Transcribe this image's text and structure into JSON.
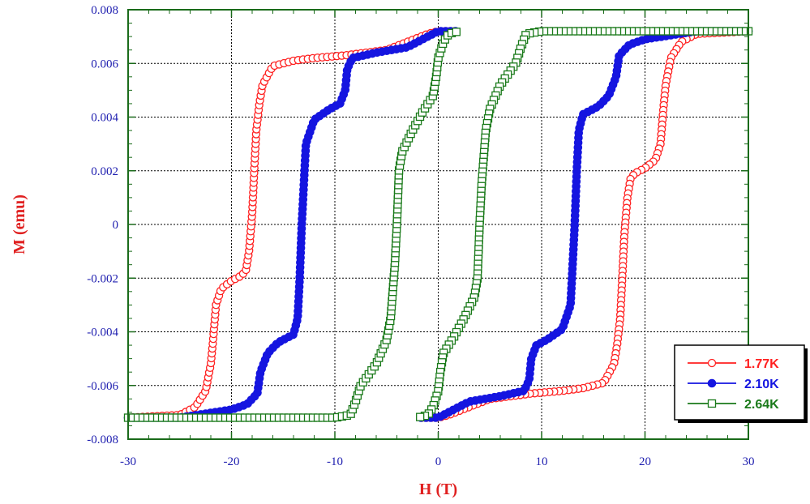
{
  "chart_data": {
    "type": "scatter",
    "xlabel": "H (T)",
    "ylabel": "M (emu)",
    "xlim": [
      -30,
      30
    ],
    "ylim": [
      -0.008,
      0.008
    ],
    "xticks": [
      "-30",
      "-20",
      "-10",
      "0",
      "10",
      "20",
      "30"
    ],
    "xtick_values": [
      -30,
      -20,
      -10,
      0,
      10,
      20,
      30
    ],
    "yticks": [
      "0.008",
      "0.006",
      "0.004",
      "0.002",
      "0",
      "-0.002",
      "-0.004",
      "-0.006",
      "-0.008"
    ],
    "ytick_values": [
      0.008,
      0.006,
      0.004,
      0.002,
      0,
      -0.002,
      -0.004,
      -0.006,
      -0.008
    ],
    "grid": true,
    "legend_position": "bottom-right",
    "colors": {
      "axis": "#1a6b1a",
      "ticklabels": "#2020b0",
      "titles": "#e02020",
      "grid": "#000000"
    },
    "series": [
      {
        "name": "1.77K",
        "color": "#ff2020",
        "marker": "open-circle",
        "up": [
          [
            -30,
            -0.0072
          ],
          [
            -25,
            -0.0071
          ],
          [
            -23.5,
            -0.0068
          ],
          [
            -22.5,
            -0.0062
          ],
          [
            -22,
            -0.0052
          ],
          [
            -21.8,
            -0.0044
          ],
          [
            -21.5,
            -0.003
          ],
          [
            -21,
            -0.0024
          ],
          [
            -20,
            -0.0021
          ],
          [
            -19,
            -0.0019
          ],
          [
            -18.6,
            -0.0017
          ],
          [
            -18.3,
            -0.001
          ],
          [
            -18,
            0.0004
          ],
          [
            -17.8,
            0.002
          ],
          [
            -17.6,
            0.0035
          ],
          [
            -17.3,
            0.0045
          ],
          [
            -17,
            0.0052
          ],
          [
            -16,
            0.0059
          ],
          [
            -14,
            0.0061
          ],
          [
            -12,
            0.0062
          ],
          [
            -9,
            0.0063
          ],
          [
            -5,
            0.0065
          ],
          [
            -3,
            0.0068
          ],
          [
            -1,
            0.0071
          ],
          [
            0,
            0.0072
          ],
          [
            2,
            0.0072
          ]
        ],
        "down": [
          [
            30,
            0.0072
          ],
          [
            25,
            0.0071
          ],
          [
            23.5,
            0.0068
          ],
          [
            22.5,
            0.0062
          ],
          [
            22,
            0.0052
          ],
          [
            21.8,
            0.0044
          ],
          [
            21.5,
            0.003
          ],
          [
            21,
            0.0024
          ],
          [
            20,
            0.0021
          ],
          [
            19,
            0.0019
          ],
          [
            18.6,
            0.0017
          ],
          [
            18.3,
            0.001
          ],
          [
            18,
            -0.0004
          ],
          [
            17.8,
            -0.002
          ],
          [
            17.6,
            -0.0035
          ],
          [
            17.3,
            -0.0045
          ],
          [
            17,
            -0.0052
          ],
          [
            16,
            -0.0059
          ],
          [
            14,
            -0.0061
          ],
          [
            12,
            -0.0062
          ],
          [
            9,
            -0.0063
          ],
          [
            5,
            -0.0065
          ],
          [
            3,
            -0.0068
          ],
          [
            1,
            -0.0071
          ],
          [
            0,
            -0.0072
          ],
          [
            -2,
            -0.0072
          ]
        ]
      },
      {
        "name": "2.10K",
        "color": "#1515e0",
        "marker": "filled-circle",
        "up": [
          [
            -30,
            -0.0072
          ],
          [
            -25,
            -0.0072
          ],
          [
            -20,
            -0.0069
          ],
          [
            -18.5,
            -0.0067
          ],
          [
            -17.5,
            -0.0063
          ],
          [
            -17.2,
            -0.0055
          ],
          [
            -16.5,
            -0.0048
          ],
          [
            -15.5,
            -0.0044
          ],
          [
            -14,
            -0.0041
          ],
          [
            -13.6,
            -0.0035
          ],
          [
            -13.4,
            -0.002
          ],
          [
            -13.2,
            0.0
          ],
          [
            -13,
            0.0015
          ],
          [
            -12.8,
            0.003
          ],
          [
            -12,
            0.0039
          ],
          [
            -10.5,
            0.0043
          ],
          [
            -9.5,
            0.0045
          ],
          [
            -9,
            0.005
          ],
          [
            -8.8,
            0.0058
          ],
          [
            -8.3,
            0.0062
          ],
          [
            -6,
            0.0064
          ],
          [
            -3,
            0.0066
          ],
          [
            -1,
            0.007
          ],
          [
            0,
            0.0072
          ],
          [
            2,
            0.0072
          ]
        ],
        "down": [
          [
            30,
            0.0072
          ],
          [
            25,
            0.0072
          ],
          [
            20,
            0.0069
          ],
          [
            18.5,
            0.0067
          ],
          [
            17.5,
            0.0063
          ],
          [
            17.2,
            0.0055
          ],
          [
            16.5,
            0.0048
          ],
          [
            15.5,
            0.0044
          ],
          [
            14,
            0.0041
          ],
          [
            13.6,
            0.0035
          ],
          [
            13.4,
            0.002
          ],
          [
            13.2,
            0.0
          ],
          [
            13,
            -0.0015
          ],
          [
            12.8,
            -0.003
          ],
          [
            12,
            -0.0039
          ],
          [
            10.5,
            -0.0043
          ],
          [
            9.5,
            -0.0045
          ],
          [
            9,
            -0.005
          ],
          [
            8.8,
            -0.0058
          ],
          [
            8.3,
            -0.0062
          ],
          [
            6,
            -0.0064
          ],
          [
            3,
            -0.0066
          ],
          [
            1,
            -0.007
          ],
          [
            0,
            -0.0072
          ],
          [
            -2,
            -0.0072
          ]
        ]
      },
      {
        "name": "2.64K",
        "color": "#1a7a1a",
        "marker": "open-square",
        "up": [
          [
            -30,
            -0.0072
          ],
          [
            -20,
            -0.0072
          ],
          [
            -10,
            -0.0072
          ],
          [
            -8.5,
            -0.0071
          ],
          [
            -8,
            -0.0066
          ],
          [
            -7.5,
            -0.006
          ],
          [
            -6,
            -0.0052
          ],
          [
            -5,
            -0.0043
          ],
          [
            -4.6,
            -0.0035
          ],
          [
            -4.4,
            -0.0025
          ],
          [
            -4.2,
            -0.0015
          ],
          [
            -4,
            0.0
          ],
          [
            -3.8,
            0.002
          ],
          [
            -3.5,
            0.0027
          ],
          [
            -2.5,
            0.0035
          ],
          [
            -1.5,
            0.0042
          ],
          [
            -0.5,
            0.0048
          ],
          [
            -0.2,
            0.0055
          ],
          [
            0,
            0.0062
          ],
          [
            0.5,
            0.0068
          ],
          [
            1,
            0.0071
          ],
          [
            2,
            0.0072
          ]
        ],
        "down": [
          [
            30,
            0.0072
          ],
          [
            20,
            0.0072
          ],
          [
            10,
            0.0072
          ],
          [
            8.5,
            0.0071
          ],
          [
            8,
            0.0066
          ],
          [
            7.5,
            0.006
          ],
          [
            6,
            0.0052
          ],
          [
            5,
            0.0043
          ],
          [
            4.6,
            0.0035
          ],
          [
            4.4,
            0.0025
          ],
          [
            4.2,
            0.0015
          ],
          [
            4,
            0.0
          ],
          [
            3.8,
            -0.002
          ],
          [
            3.5,
            -0.0027
          ],
          [
            2.5,
            -0.0035
          ],
          [
            1.5,
            -0.0042
          ],
          [
            0.5,
            -0.0048
          ],
          [
            0.2,
            -0.0055
          ],
          [
            0,
            -0.0062
          ],
          [
            -0.5,
            -0.0068
          ],
          [
            -1,
            -0.0071
          ],
          [
            -2,
            -0.0072
          ]
        ]
      }
    ]
  }
}
